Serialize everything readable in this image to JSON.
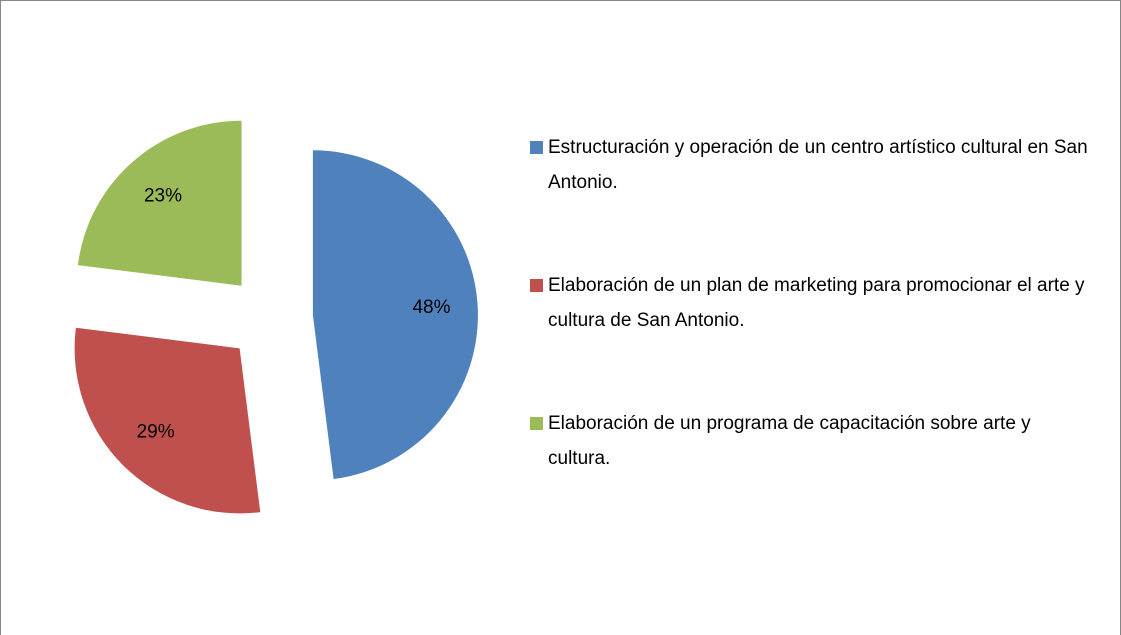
{
  "chart_data": {
    "type": "pie",
    "categories": [
      "Estructuración y operación de un centro artístico cultural en San Antonio.",
      "Elaboración de un plan de marketing para promocionar el arte y cultura de San Antonio.",
      "Elaboración de un programa de capacitación sobre arte y cultura."
    ],
    "values": [
      48,
      29,
      23
    ],
    "value_labels": [
      "48%",
      "29%",
      "23%"
    ],
    "colors": [
      "#4f81bd",
      "#c0504d",
      "#9bbb59"
    ],
    "exploded": true,
    "legend": "right"
  }
}
